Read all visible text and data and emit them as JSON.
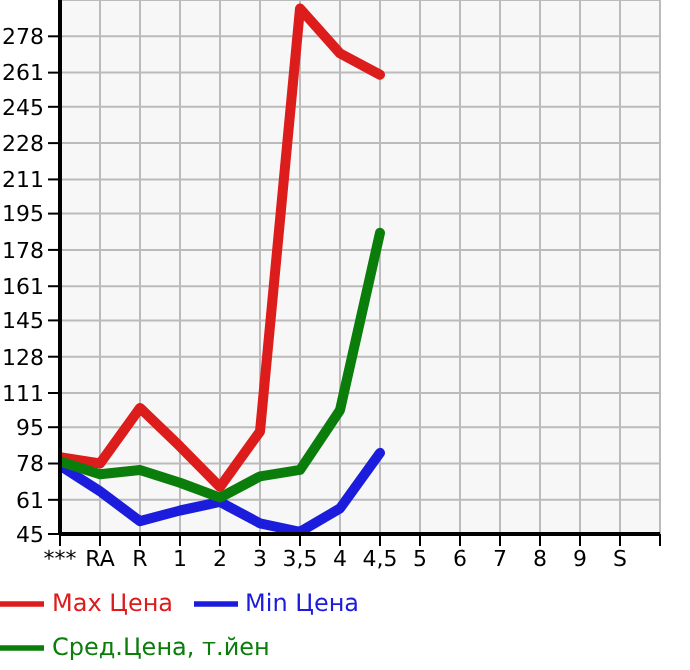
{
  "chart_data": {
    "type": "line",
    "categories": [
      "***",
      "RA",
      "R",
      "1",
      "2",
      "3",
      "3,5",
      "4",
      "4,5",
      "5",
      "6",
      "7",
      "8",
      "9",
      "S"
    ],
    "series": [
      {
        "name": "Max Цена",
        "color": "#dd1c1c",
        "values": [
          81,
          78,
          104,
          86,
          67,
          93,
          291,
          270,
          260,
          null,
          null,
          null,
          null,
          null,
          null
        ]
      },
      {
        "name": "Min Цена",
        "color": "#1c1cdd",
        "values": [
          77,
          65,
          51,
          56,
          60,
          50,
          46,
          57,
          83,
          null,
          null,
          null,
          null,
          null,
          null
        ]
      },
      {
        "name": "Сред.Цена, т.йен",
        "color": "#0a7d0a",
        "values": [
          79,
          73,
          75,
          69,
          62,
          72,
          75,
          103,
          186,
          null,
          null,
          null,
          null,
          null,
          null
        ]
      }
    ],
    "ylim": [
      45,
      295
    ],
    "yticks": [
      45,
      61,
      78,
      95,
      111,
      128,
      145,
      161,
      178,
      195,
      211,
      228,
      245,
      261,
      278
    ],
    "grid": true,
    "legend": "bottom",
    "marker": "none",
    "line_style": "solid"
  }
}
